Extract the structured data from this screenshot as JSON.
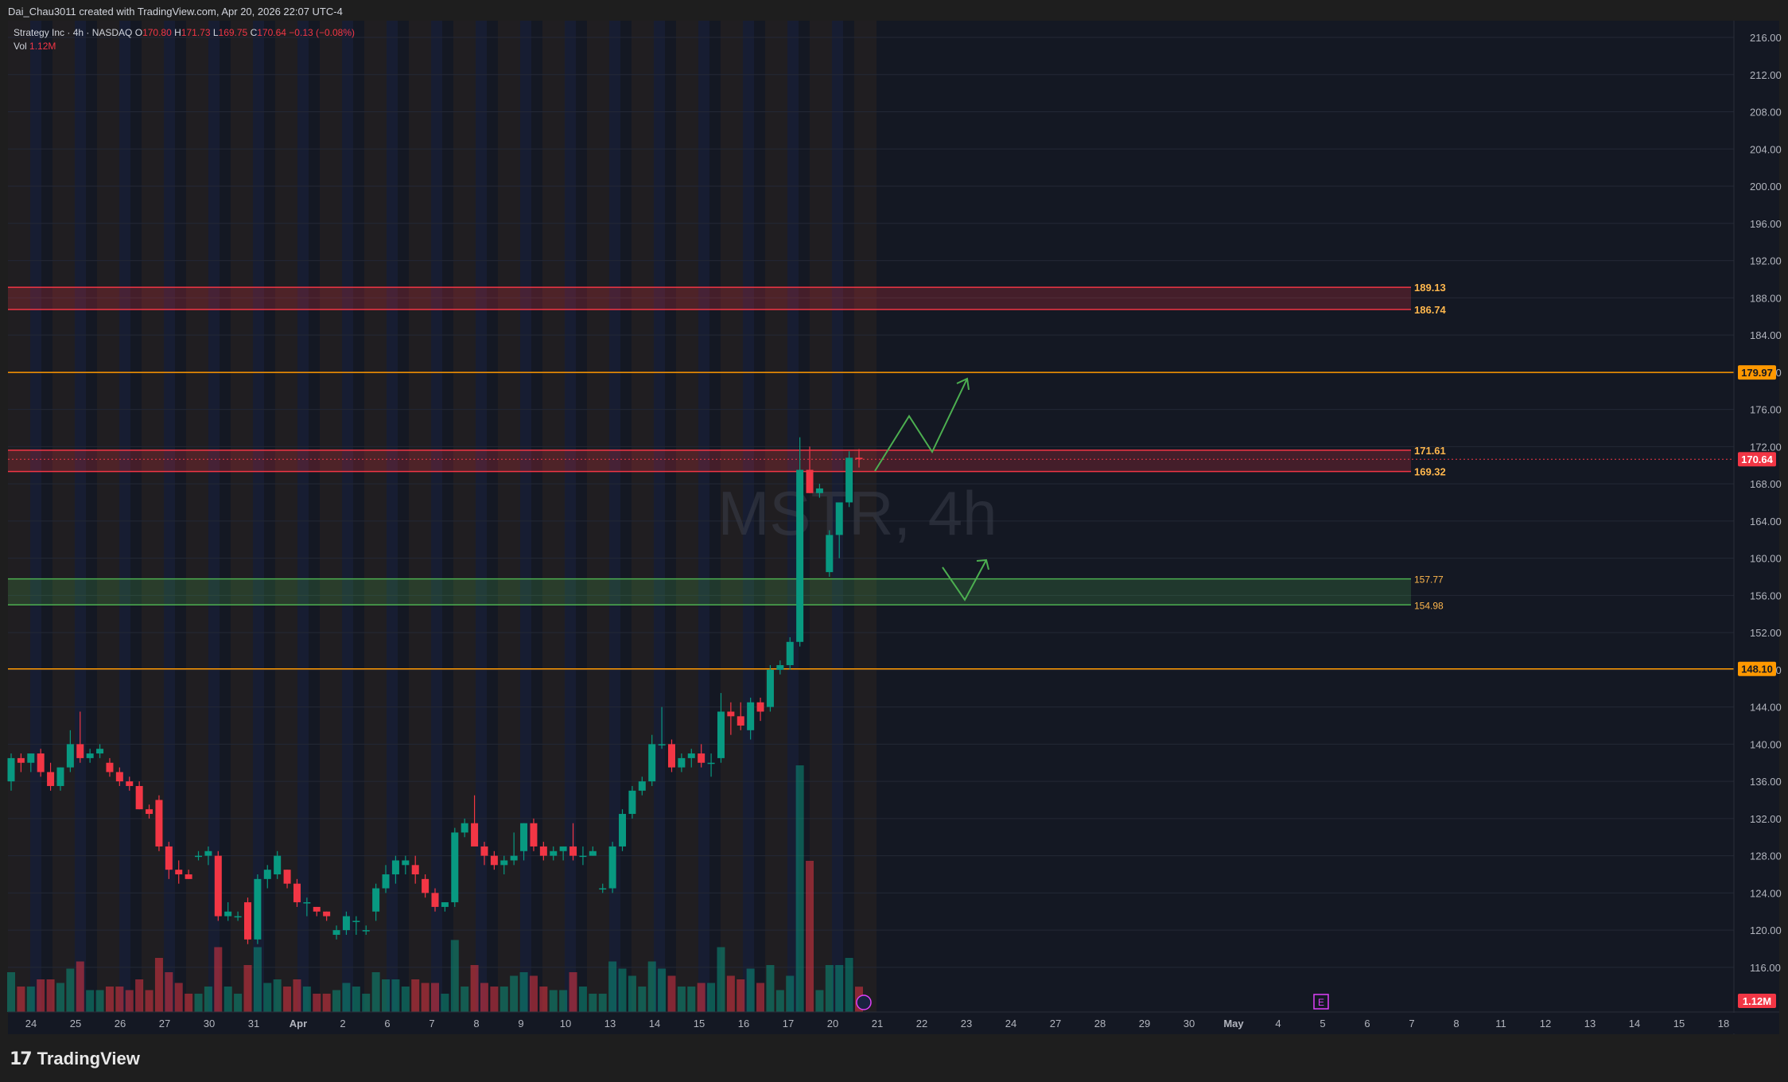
{
  "header": {
    "attribution": "Dai_Chau3011 created with TradingView.com, Apr 20, 2026 22:07 UTC-4"
  },
  "legend": {
    "symbol_line": "Strategy Inc · 4h · NASDAQ",
    "o_label": "O",
    "o_value": "170.80",
    "h_label": "H",
    "h_value": "171.73",
    "l_label": "L",
    "l_value": "169.75",
    "c_label": "C",
    "c_value": "170.64",
    "change": "−0.13 (−0.08%)",
    "vol_label": "Vol",
    "vol_value": "1.12M"
  },
  "watermark": "MSTR, 4h",
  "footer": {
    "brand": "TradingView",
    "logo_icon": "tradingview-logo-icon"
  },
  "colors": {
    "background": "#141823",
    "up": "#089981",
    "down": "#f23645",
    "resistance_band": "#f23645",
    "support_band": "#4caf50",
    "orange_level": "#ff9800",
    "projection": "#4caf50"
  },
  "chart_data": {
    "type": "candlestick",
    "symbol": "MSTR",
    "timeframe": "4h",
    "exchange": "NASDAQ",
    "y_axis": {
      "ticks": [
        116,
        120,
        124,
        128,
        132,
        136,
        140,
        144,
        148,
        152,
        156,
        160,
        164,
        168,
        172,
        176,
        180,
        184,
        188,
        192,
        196,
        200,
        204,
        208,
        212,
        216
      ],
      "tick_labels": [
        "116.00",
        "120.00",
        "124.00",
        "128.00",
        "132.00",
        "136.00",
        "140.00",
        "144.00",
        "148.00",
        "152.00",
        "156.00",
        "160.00",
        "164.00",
        "168.00",
        "172.00",
        "176.00",
        "180.00",
        "184.00",
        "188.00",
        "192.00",
        "196.00",
        "200.00",
        "204.00",
        "208.00",
        "212.00",
        "216.00"
      ],
      "range": [
        111.2,
        217.8
      ]
    },
    "x_axis": {
      "labels": [
        "24",
        "25",
        "26",
        "27",
        "30",
        "31",
        "Apr",
        "2",
        "6",
        "7",
        "8",
        "9",
        "10",
        "13",
        "14",
        "15",
        "16",
        "17",
        "20",
        "21",
        "22",
        "23",
        "24",
        "27",
        "28",
        "29",
        "30",
        "May",
        "4",
        "5",
        "6",
        "7",
        "8",
        "11",
        "12",
        "13",
        "14",
        "15",
        "18"
      ]
    },
    "price_levels": [
      {
        "label": "189.13",
        "value": 189.13,
        "kind": "resistance-top"
      },
      {
        "label": "186.74",
        "value": 186.74,
        "kind": "resistance-bottom"
      },
      {
        "label": "179.97",
        "value": 179.97,
        "kind": "horizontal-line"
      },
      {
        "label": "171.61",
        "value": 171.61,
        "kind": "resistance-top"
      },
      {
        "label": "169.32",
        "value": 169.32,
        "kind": "resistance-bottom"
      },
      {
        "label": "157.77",
        "value": 157.77,
        "kind": "support-top"
      },
      {
        "label": "154.98",
        "value": 154.98,
        "kind": "support-bottom"
      },
      {
        "label": "148.10",
        "value": 148.1,
        "kind": "horizontal-line"
      }
    ],
    "last_price": {
      "label": "170.64",
      "value": 170.64
    },
    "last_volume": {
      "label": "1.12M"
    },
    "earnings_marker": {
      "label": "E",
      "date": "5"
    },
    "candles": [
      [
        136,
        139,
        135,
        138.5
      ],
      [
        138.5,
        139,
        137,
        138
      ],
      [
        138,
        139,
        137,
        139
      ],
      [
        139,
        139.5,
        136.5,
        137
      ],
      [
        137,
        138,
        135,
        135.5
      ],
      [
        135.5,
        137.5,
        135,
        137.5
      ],
      [
        137.5,
        141.5,
        137,
        140
      ],
      [
        140,
        143.5,
        138,
        138.5
      ],
      [
        138.5,
        139.5,
        138,
        139
      ],
      [
        139,
        140,
        138.5,
        139.5
      ],
      [
        138,
        138.5,
        136.5,
        137
      ],
      [
        137,
        137.5,
        135.5,
        136
      ],
      [
        136,
        136.5,
        135,
        135.5
      ],
      [
        135.5,
        136,
        133,
        133
      ],
      [
        133,
        133.5,
        132,
        132.5
      ],
      [
        134,
        134.5,
        128.5,
        129
      ],
      [
        129,
        129.5,
        125.5,
        126.5
      ],
      [
        126.5,
        127.5,
        125,
        126
      ],
      [
        126,
        126.5,
        125.5,
        125.5
      ],
      [
        128,
        128.5,
        127.5,
        128
      ],
      [
        128,
        129,
        127,
        128.5
      ],
      [
        128,
        128.5,
        121,
        121.5
      ],
      [
        121.5,
        123,
        121,
        122
      ],
      [
        121.5,
        122,
        121,
        121.5
      ],
      [
        123,
        123.5,
        118.5,
        119
      ],
      [
        119,
        126,
        118.5,
        125.5
      ],
      [
        125.5,
        127,
        124.5,
        126.5
      ],
      [
        126,
        128.5,
        125.5,
        128
      ],
      [
        126.5,
        126.5,
        124.5,
        125
      ],
      [
        125,
        125.5,
        122.5,
        123
      ],
      [
        123,
        123.5,
        121.5,
        123
      ],
      [
        122.5,
        122.5,
        121.5,
        122
      ],
      [
        122,
        122,
        121,
        121.5
      ],
      [
        119.5,
        120.5,
        119,
        120
      ],
      [
        120,
        122,
        119.5,
        121.5
      ],
      [
        121,
        121.5,
        119.5,
        121
      ],
      [
        120,
        120.5,
        119.5,
        120
      ],
      [
        122,
        125,
        121,
        124.5
      ],
      [
        124.5,
        127,
        124,
        126
      ],
      [
        126,
        128,
        125,
        127.5
      ],
      [
        127,
        128,
        126,
        127.5
      ],
      [
        127,
        128,
        125,
        126
      ],
      [
        125.5,
        126,
        123.5,
        124
      ],
      [
        124,
        124.5,
        122,
        122.5
      ],
      [
        122.5,
        123,
        122,
        123
      ],
      [
        123,
        131,
        122.5,
        130.5
      ],
      [
        130.5,
        132,
        130,
        131.5
      ],
      [
        131.5,
        134.5,
        129.5,
        129
      ],
      [
        129,
        129.5,
        127,
        128
      ],
      [
        128,
        128.5,
        126.5,
        127
      ],
      [
        127,
        128,
        126,
        127.5
      ],
      [
        127.5,
        130.5,
        127,
        128
      ],
      [
        128.5,
        131.5,
        127.5,
        131.5
      ],
      [
        131.5,
        132,
        128.5,
        129
      ],
      [
        129,
        129.5,
        127.5,
        128
      ],
      [
        128,
        129,
        127.5,
        128.5
      ],
      [
        128.5,
        129,
        127.5,
        129
      ],
      [
        129,
        131.5,
        127.5,
        128
      ],
      [
        128,
        129,
        127,
        128
      ],
      [
        128,
        129,
        128,
        128.5
      ],
      [
        124.5,
        125,
        124,
        124.5
      ],
      [
        124.5,
        129.5,
        124,
        129
      ],
      [
        129,
        133,
        128.5,
        132.5
      ],
      [
        132.5,
        135.5,
        132,
        135
      ],
      [
        135,
        136.5,
        134.5,
        136
      ],
      [
        136,
        141,
        135.5,
        140
      ],
      [
        140,
        144,
        139.5,
        140
      ],
      [
        140,
        140.5,
        137,
        137.5
      ],
      [
        137.5,
        139,
        137,
        138.5
      ],
      [
        138.5,
        139.5,
        137.5,
        139
      ],
      [
        139,
        140,
        137.5,
        138
      ],
      [
        138,
        139,
        136.5,
        138
      ],
      [
        138.5,
        145.5,
        138,
        143.5
      ],
      [
        143.5,
        144.5,
        141,
        143
      ],
      [
        143,
        144.5,
        141.5,
        142
      ],
      [
        141.5,
        145,
        140.5,
        144.5
      ],
      [
        144.5,
        145,
        142.5,
        143.5
      ],
      [
        144,
        148.5,
        143.5,
        148
      ],
      [
        148,
        149,
        147.5,
        148.5
      ],
      [
        148.5,
        151.5,
        148,
        151
      ],
      [
        151,
        173,
        150.5,
        169.5
      ],
      [
        169.5,
        172,
        167,
        167
      ],
      [
        167,
        168,
        166.5,
        167.5
      ],
      [
        158.5,
        163,
        158,
        162.5
      ],
      [
        162.5,
        165,
        160,
        166
      ],
      [
        166,
        171.5,
        165.5,
        170.8
      ],
      [
        170.8,
        171.73,
        169.75,
        170.64
      ]
    ],
    "volume_shape_note": "volume bars follow candles; visible relative heights only"
  }
}
